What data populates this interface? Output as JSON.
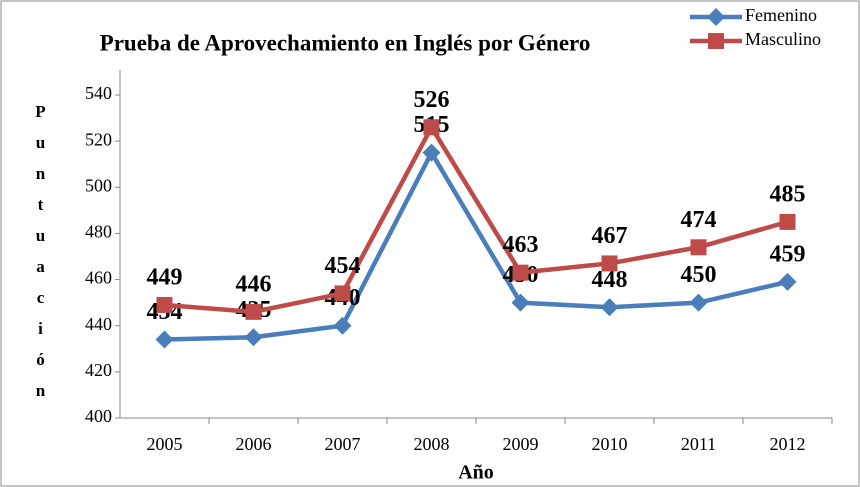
{
  "chart_data": {
    "type": "line",
    "title": "Prueba de Aprovechamiento en Inglés por Género",
    "x_label": "Año",
    "y_label": "Puntuación",
    "categories": [
      "2005",
      "2006",
      "2007",
      "2008",
      "2009",
      "2010",
      "2011",
      "2012"
    ],
    "series": [
      {
        "name": "Femenino",
        "color": "#4a7ebb",
        "marker": "diamond",
        "values": [
          434,
          435,
          440,
          515,
          450,
          448,
          450,
          459
        ]
      },
      {
        "name": "Masculino",
        "color": "#be4b48",
        "marker": "square",
        "values": [
          449,
          446,
          454,
          526,
          463,
          467,
          474,
          485
        ]
      }
    ],
    "ylim": [
      400,
      540
    ],
    "yticks": [
      400,
      420,
      440,
      460,
      480,
      500,
      520,
      540
    ],
    "grid": false,
    "legend": "top-right"
  }
}
